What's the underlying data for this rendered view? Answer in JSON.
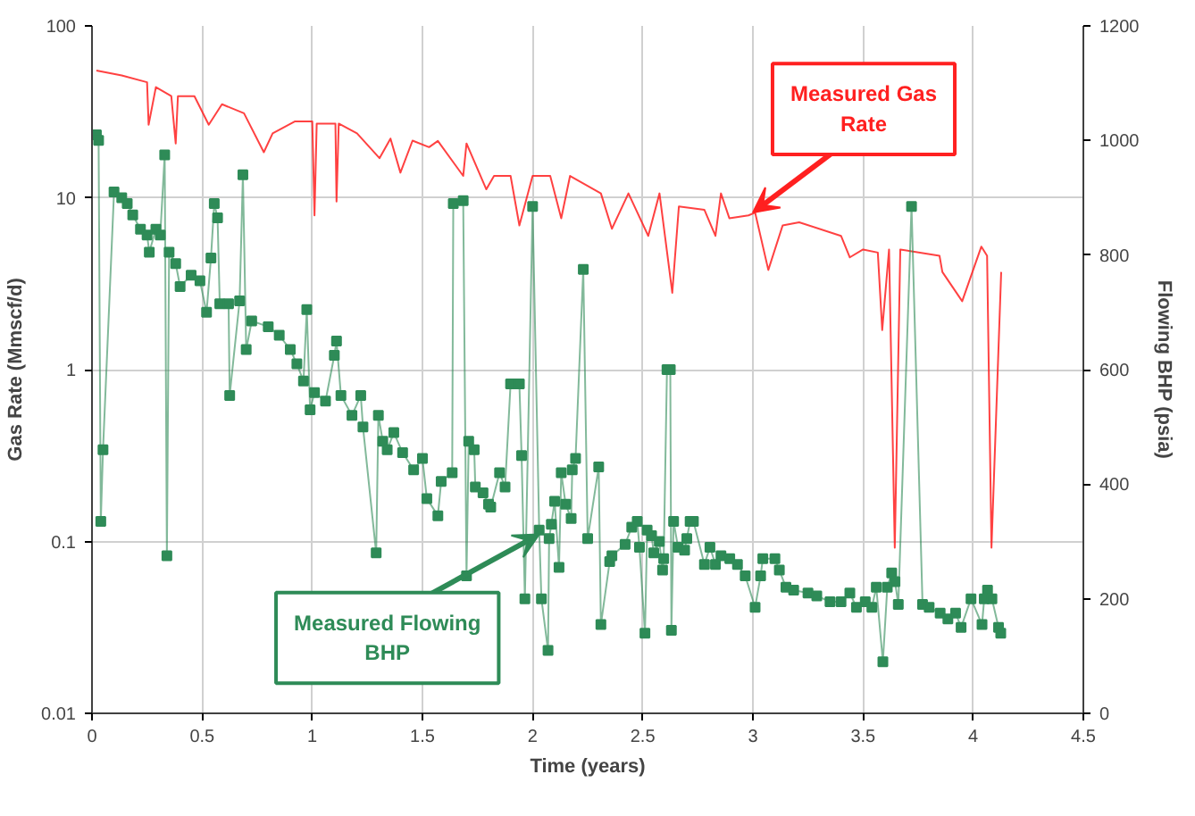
{
  "chart_data": {
    "type": "line",
    "xlabel": "Time (years)",
    "ylabel": "Gas Rate (Mmscf/d)",
    "y2label": "Flowing BHP (psia)",
    "log": "y",
    "grid": true,
    "xlim": [
      0,
      4.5
    ],
    "xticks": [
      0,
      0.5,
      1,
      1.5,
      2,
      2.5,
      3,
      3.5,
      4,
      4.5
    ],
    "ylim": [
      0.01,
      100
    ],
    "yticks": [
      0.01,
      0.1,
      1,
      10,
      100
    ],
    "y2lim": [
      0,
      1200
    ],
    "y2ticks": [
      0,
      200,
      400,
      600,
      800,
      1000,
      1200
    ],
    "series": [
      {
        "color": "#ff2020",
        "marker": "none",
        "x": [
          0.02,
          0.135,
          0.25,
          0.257,
          0.29,
          0.36,
          0.38,
          0.39,
          0.465,
          0.53,
          0.59,
          0.69,
          0.78,
          0.82,
          0.92,
          1.0,
          1.01,
          1.02,
          1.105,
          1.11,
          1.12,
          1.203,
          1.305,
          1.355,
          1.4,
          1.455,
          1.53,
          1.57,
          1.685,
          1.7,
          1.79,
          1.825,
          1.9,
          1.94,
          2.0,
          2.08,
          2.13,
          2.17,
          2.31,
          2.36,
          2.435,
          2.525,
          2.576,
          2.634,
          2.664,
          2.78,
          2.83,
          2.855,
          2.893,
          2.98,
          3.01,
          3.07,
          3.135,
          3.21,
          3.4,
          3.44,
          3.5,
          3.567,
          3.587,
          3.618,
          3.644,
          3.669,
          3.847,
          3.86,
          3.95,
          4.037,
          4.063,
          4.083,
          4.127
        ],
        "values": [
          55,
          51.5,
          47,
          26.6,
          44,
          39,
          20.7,
          39,
          39,
          26.6,
          35,
          31,
          18.4,
          23.7,
          27.8,
          27.8,
          7.9,
          27,
          27,
          9.5,
          27,
          23.7,
          17,
          22.1,
          14,
          21.5,
          19.7,
          21.4,
          13.4,
          20.7,
          11.2,
          13.4,
          13.4,
          6.9,
          13.4,
          13.4,
          7.6,
          13.4,
          10.6,
          6.6,
          10.6,
          6.0,
          10.6,
          2.8,
          8.9,
          8.5,
          6.0,
          10.6,
          7.6,
          7.9,
          8.2,
          3.8,
          6.9,
          7.2,
          6.0,
          4.5,
          5.0,
          4.8,
          1.7,
          5.0,
          0.092,
          5.0,
          4.6,
          3.7,
          2.5,
          5.2,
          4.6,
          0.092,
          3.7
        ]
      },
      {
        "color": "#2e8b57",
        "marker": "square",
        "axis": "y2",
        "x": [
          0.02,
          0.03,
          0.04,
          0.05,
          0.1,
          0.135,
          0.16,
          0.185,
          0.22,
          0.25,
          0.26,
          0.29,
          0.31,
          0.33,
          0.34,
          0.35,
          0.38,
          0.4,
          0.45,
          0.49,
          0.52,
          0.54,
          0.555,
          0.57,
          0.58,
          0.62,
          0.625,
          0.67,
          0.685,
          0.7,
          0.725,
          0.8,
          0.85,
          0.9,
          0.93,
          0.96,
          0.975,
          0.99,
          1.01,
          1.06,
          1.1,
          1.11,
          1.13,
          1.18,
          1.22,
          1.23,
          1.29,
          1.3,
          1.32,
          1.34,
          1.37,
          1.41,
          1.46,
          1.5,
          1.52,
          1.57,
          1.585,
          1.635,
          1.64,
          1.685,
          1.7,
          1.71,
          1.735,
          1.74,
          1.775,
          1.8,
          1.81,
          1.85,
          1.875,
          1.9,
          1.94,
          1.95,
          1.965,
          2.0,
          2.03,
          2.04,
          2.07,
          2.075,
          2.085,
          2.1,
          2.12,
          2.13,
          2.15,
          2.175,
          2.18,
          2.195,
          2.23,
          2.25,
          2.3,
          2.31,
          2.35,
          2.36,
          2.42,
          2.45,
          2.475,
          2.485,
          2.51,
          2.52,
          2.54,
          2.55,
          2.575,
          2.59,
          2.595,
          2.61,
          2.625,
          2.63,
          2.64,
          2.66,
          2.69,
          2.7,
          2.715,
          2.73,
          2.78,
          2.805,
          2.83,
          2.855,
          2.895,
          2.93,
          2.965,
          3.01,
          3.035,
          3.045,
          3.1,
          3.12,
          3.15,
          3.185,
          3.25,
          3.29,
          3.35,
          3.4,
          3.44,
          3.47,
          3.51,
          3.54,
          3.56,
          3.59,
          3.61,
          3.63,
          3.645,
          3.66,
          3.72,
          3.77,
          3.8,
          3.85,
          3.885,
          3.92,
          3.945,
          3.99,
          4.04,
          4.05,
          4.065,
          4.085,
          4.115,
          4.125
        ],
        "values": [
          1010,
          1000,
          335,
          460,
          910,
          900,
          890,
          870,
          845,
          835,
          805,
          845,
          835,
          975,
          275,
          805,
          785,
          745,
          765,
          755,
          700,
          795,
          890,
          865,
          715,
          715,
          555,
          720,
          940,
          635,
          685,
          675,
          660,
          635,
          610,
          580,
          705,
          530,
          560,
          545,
          625,
          650,
          555,
          520,
          555,
          500,
          280,
          520,
          475,
          460,
          490,
          455,
          425,
          445,
          375,
          345,
          405,
          420,
          890,
          895,
          240,
          475,
          460,
          395,
          385,
          365,
          360,
          420,
          395,
          575,
          575,
          450,
          200,
          885,
          320,
          200,
          110,
          305,
          330,
          370,
          255,
          420,
          365,
          340,
          425,
          445,
          775,
          305,
          430,
          155,
          265,
          275,
          295,
          325,
          335,
          290,
          140,
          320,
          310,
          280,
          300,
          250,
          270,
          600,
          600,
          145,
          335,
          290,
          285,
          305,
          335,
          335,
          260,
          290,
          260,
          275,
          270,
          260,
          240,
          185,
          240,
          270,
          270,
          250,
          220,
          215,
          210,
          205,
          195,
          195,
          210,
          185,
          195,
          185,
          220,
          90,
          220,
          245,
          230,
          190,
          885,
          190,
          185,
          175,
          165,
          175,
          150,
          200,
          155,
          200,
          215,
          200,
          150,
          140
        ]
      }
    ],
    "annotations": [
      {
        "text": "Measured Gas Rate",
        "x": 3.0,
        "y": 8.2
      },
      {
        "text": "Measured Flowing BHP",
        "x": 2.03,
        "y": 0.11
      }
    ]
  }
}
